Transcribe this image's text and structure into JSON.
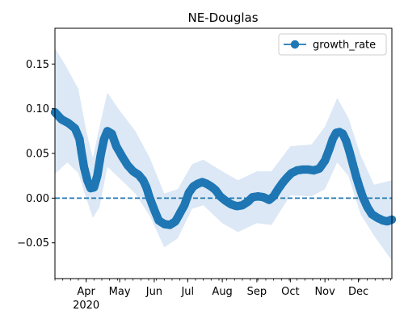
{
  "chart_data": {
    "type": "line",
    "title": "NE-Douglas",
    "xlabel": "",
    "ylabel": "",
    "x_range": [
      "2020-03-04",
      "2020-12-31"
    ],
    "ylim": [
      -0.09,
      0.19
    ],
    "x_major_ticks": [
      {
        "date": "2020-04-01",
        "label": "Apr",
        "sublabel": "2020"
      },
      {
        "date": "2020-05-01",
        "label": "May"
      },
      {
        "date": "2020-06-01",
        "label": "Jun"
      },
      {
        "date": "2020-07-01",
        "label": "Jul"
      },
      {
        "date": "2020-08-01",
        "label": "Aug"
      },
      {
        "date": "2020-09-01",
        "label": "Sep"
      },
      {
        "date": "2020-10-01",
        "label": "Oct"
      },
      {
        "date": "2020-11-01",
        "label": "Nov"
      },
      {
        "date": "2020-12-01",
        "label": "Dec"
      }
    ],
    "y_ticks": [
      {
        "value": 0.15,
        "label": "0.15"
      },
      {
        "value": 0.1,
        "label": "0.10"
      },
      {
        "value": 0.05,
        "label": "0.05"
      },
      {
        "value": 0.0,
        "label": "0.00"
      },
      {
        "value": -0.05,
        "label": "−0.05"
      }
    ],
    "grid": false,
    "legend": {
      "position": "top-right",
      "entries": [
        "growth_rate"
      ]
    },
    "reference_line": {
      "y": 0,
      "style": "dashed"
    },
    "series": [
      {
        "name": "growth_rate",
        "color": "#1f77b4",
        "marker": "circle",
        "points": [
          [
            "2020-03-04",
            0.096
          ],
          [
            "2020-03-10",
            0.088
          ],
          [
            "2020-03-16",
            0.084
          ],
          [
            "2020-03-22",
            0.078
          ],
          [
            "2020-03-26",
            0.066
          ],
          [
            "2020-03-28",
            0.05
          ],
          [
            "2020-03-30",
            0.035
          ],
          [
            "2020-04-02",
            0.02
          ],
          [
            "2020-04-05",
            0.011
          ],
          [
            "2020-04-08",
            0.012
          ],
          [
            "2020-04-11",
            0.025
          ],
          [
            "2020-04-14",
            0.048
          ],
          [
            "2020-04-17",
            0.066
          ],
          [
            "2020-04-20",
            0.075
          ],
          [
            "2020-04-24",
            0.072
          ],
          [
            "2020-04-28",
            0.058
          ],
          [
            "2020-05-03",
            0.047
          ],
          [
            "2020-05-08",
            0.037
          ],
          [
            "2020-05-13",
            0.03
          ],
          [
            "2020-05-18",
            0.026
          ],
          [
            "2020-05-22",
            0.02
          ],
          [
            "2020-05-25",
            0.012
          ],
          [
            "2020-05-28",
            0.0
          ],
          [
            "2020-06-01",
            -0.013
          ],
          [
            "2020-06-05",
            -0.025
          ],
          [
            "2020-06-10",
            -0.029
          ],
          [
            "2020-06-15",
            -0.03
          ],
          [
            "2020-06-20",
            -0.026
          ],
          [
            "2020-06-24",
            -0.017
          ],
          [
            "2020-06-28",
            -0.008
          ],
          [
            "2020-07-02",
            0.006
          ],
          [
            "2020-07-06",
            0.013
          ],
          [
            "2020-07-10",
            0.016
          ],
          [
            "2020-07-14",
            0.018
          ],
          [
            "2020-07-18",
            0.016
          ],
          [
            "2020-07-22",
            0.013
          ],
          [
            "2020-07-26",
            0.009
          ],
          [
            "2020-07-30",
            0.002
          ],
          [
            "2020-08-04",
            -0.003
          ],
          [
            "2020-08-09",
            -0.007
          ],
          [
            "2020-08-14",
            -0.009
          ],
          [
            "2020-08-19",
            -0.008
          ],
          [
            "2020-08-24",
            -0.004
          ],
          [
            "2020-08-28",
            0.001
          ],
          [
            "2020-09-02",
            0.002
          ],
          [
            "2020-09-07",
            0.001
          ],
          [
            "2020-09-12",
            -0.002
          ],
          [
            "2020-09-16",
            0.002
          ],
          [
            "2020-09-20",
            0.01
          ],
          [
            "2020-09-24",
            0.017
          ],
          [
            "2020-09-28",
            0.023
          ],
          [
            "2020-10-02",
            0.028
          ],
          [
            "2020-10-07",
            0.031
          ],
          [
            "2020-10-12",
            0.032
          ],
          [
            "2020-10-17",
            0.032
          ],
          [
            "2020-10-22",
            0.031
          ],
          [
            "2020-10-27",
            0.033
          ],
          [
            "2020-11-01",
            0.042
          ],
          [
            "2020-11-05",
            0.055
          ],
          [
            "2020-11-08",
            0.066
          ],
          [
            "2020-11-11",
            0.073
          ],
          [
            "2020-11-14",
            0.074
          ],
          [
            "2020-11-17",
            0.072
          ],
          [
            "2020-11-20",
            0.064
          ],
          [
            "2020-11-23",
            0.052
          ],
          [
            "2020-11-26",
            0.038
          ],
          [
            "2020-11-29",
            0.024
          ],
          [
            "2020-12-02",
            0.012
          ],
          [
            "2020-12-05",
            0.001
          ],
          [
            "2020-12-09",
            -0.01
          ],
          [
            "2020-12-13",
            -0.018
          ],
          [
            "2020-12-18",
            -0.022
          ],
          [
            "2020-12-23",
            -0.025
          ],
          [
            "2020-12-27",
            -0.026
          ],
          [
            "2020-12-31",
            -0.024
          ]
        ],
        "band": {
          "color": "#dce8f5",
          "points": [
            [
              "2020-03-04",
              0.027,
              0.168
            ],
            [
              "2020-03-15",
              0.04,
              0.145
            ],
            [
              "2020-03-25",
              0.028,
              0.122
            ],
            [
              "2020-04-01",
              0.0,
              0.075
            ],
            [
              "2020-04-07",
              -0.022,
              0.045
            ],
            [
              "2020-04-13",
              -0.01,
              0.08
            ],
            [
              "2020-04-20",
              0.035,
              0.118
            ],
            [
              "2020-05-01",
              0.022,
              0.098
            ],
            [
              "2020-05-15",
              0.005,
              0.075
            ],
            [
              "2020-05-28",
              -0.02,
              0.045
            ],
            [
              "2020-06-10",
              -0.055,
              0.005
            ],
            [
              "2020-06-22",
              -0.045,
              0.01
            ],
            [
              "2020-07-05",
              -0.012,
              0.038
            ],
            [
              "2020-07-15",
              -0.008,
              0.043
            ],
            [
              "2020-08-01",
              -0.028,
              0.03
            ],
            [
              "2020-08-15",
              -0.038,
              0.02
            ],
            [
              "2020-09-01",
              -0.028,
              0.03
            ],
            [
              "2020-09-14",
              -0.03,
              0.03
            ],
            [
              "2020-10-01",
              0.003,
              0.058
            ],
            [
              "2020-10-20",
              0.002,
              0.06
            ],
            [
              "2020-11-01",
              0.01,
              0.08
            ],
            [
              "2020-11-12",
              0.04,
              0.112
            ],
            [
              "2020-11-22",
              0.025,
              0.09
            ],
            [
              "2020-12-03",
              -0.018,
              0.048
            ],
            [
              "2020-12-15",
              -0.042,
              0.015
            ],
            [
              "2020-12-31",
              -0.07,
              0.02
            ]
          ]
        }
      }
    ]
  }
}
